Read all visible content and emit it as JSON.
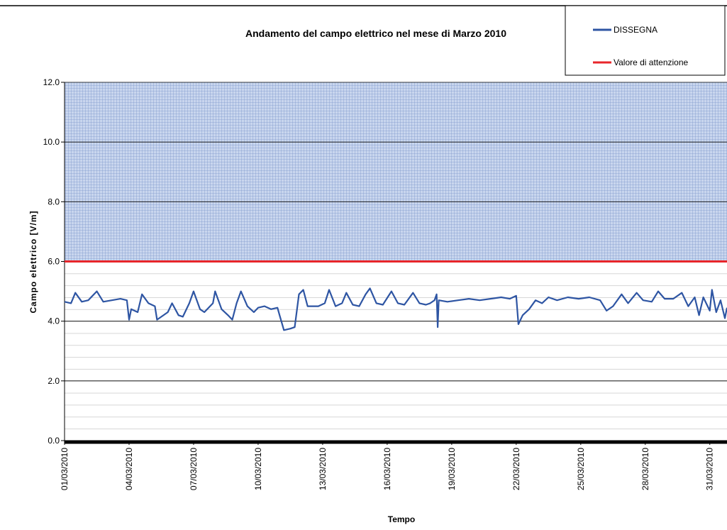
{
  "chart_data": {
    "type": "line",
    "title": "Andamento del campo elettrico nel mese di Marzo 2010",
    "x_label": "Tempo",
    "y_label": "Campo elettrico [V/m]",
    "xlim": [
      1,
      31.8
    ],
    "ylim": [
      0,
      12
    ],
    "xticks": [
      {
        "value": 1,
        "label": "01/03/2010"
      },
      {
        "value": 4,
        "label": "04/03/2010"
      },
      {
        "value": 7,
        "label": "07/03/2010"
      },
      {
        "value": 10,
        "label": "10/03/2010"
      },
      {
        "value": 13,
        "label": "13/03/2010"
      },
      {
        "value": 16,
        "label": "16/03/2010"
      },
      {
        "value": 19,
        "label": "19/03/2010"
      },
      {
        "value": 22,
        "label": "22/03/2010"
      },
      {
        "value": 25,
        "label": "25/03/2010"
      },
      {
        "value": 28,
        "label": "28/03/2010"
      },
      {
        "value": 31,
        "label": "31/03/2010"
      }
    ],
    "yticks": [
      {
        "value": 0,
        "label": "0.0"
      },
      {
        "value": 2,
        "label": "2.0"
      },
      {
        "value": 4,
        "label": "4.0"
      },
      {
        "value": 6,
        "label": "6.0"
      },
      {
        "value": 8,
        "label": "8.0"
      },
      {
        "value": 10,
        "label": "10.0"
      },
      {
        "value": 12,
        "label": "12.0"
      }
    ],
    "grid": true,
    "legend": "top-right",
    "series": [
      {
        "name": "DISSEGNA",
        "color": "#2e55a3",
        "x": [
          1.0,
          1.3,
          1.5,
          1.8,
          2.1,
          2.5,
          2.8,
          3.2,
          3.6,
          3.9,
          4.0,
          4.1,
          4.4,
          4.6,
          4.9,
          5.2,
          5.3,
          5.5,
          5.8,
          6.0,
          6.3,
          6.5,
          6.8,
          7.0,
          7.3,
          7.5,
          7.9,
          8.0,
          8.3,
          8.6,
          8.8,
          9.0,
          9.2,
          9.5,
          9.8,
          10.0,
          10.3,
          10.6,
          10.9,
          11.0,
          11.2,
          11.5,
          11.7,
          11.9,
          12.1,
          12.3,
          12.8,
          13.1,
          13.3,
          13.6,
          13.9,
          14.1,
          14.4,
          14.7,
          15.0,
          15.2,
          15.5,
          15.8,
          16.2,
          16.5,
          16.8,
          17.2,
          17.5,
          17.8,
          18.0,
          18.2,
          18.3,
          18.35,
          18.4,
          18.8,
          19.3,
          19.8,
          20.3,
          20.8,
          21.3,
          21.7,
          22.0,
          22.1,
          22.3,
          22.6,
          22.9,
          23.2,
          23.5,
          23.9,
          24.4,
          24.9,
          25.4,
          25.9,
          26.2,
          26.5,
          26.9,
          27.2,
          27.6,
          27.9,
          28.3,
          28.6,
          28.9,
          29.3,
          29.7,
          30.0,
          30.3,
          30.5,
          30.7,
          31.0,
          31.1,
          31.3,
          31.5,
          31.7,
          31.8
        ],
        "values": [
          4.65,
          4.6,
          4.95,
          4.65,
          4.7,
          5.0,
          4.65,
          4.7,
          4.75,
          4.7,
          4.05,
          4.4,
          4.3,
          4.9,
          4.6,
          4.5,
          4.05,
          4.15,
          4.3,
          4.6,
          4.2,
          4.15,
          4.6,
          5.0,
          4.4,
          4.3,
          4.6,
          5.0,
          4.4,
          4.2,
          4.05,
          4.6,
          5.0,
          4.5,
          4.3,
          4.45,
          4.5,
          4.4,
          4.45,
          4.2,
          3.7,
          3.75,
          3.8,
          4.9,
          5.05,
          4.5,
          4.5,
          4.6,
          5.05,
          4.5,
          4.6,
          4.95,
          4.55,
          4.5,
          4.9,
          5.1,
          4.6,
          4.55,
          5.0,
          4.6,
          4.55,
          4.95,
          4.6,
          4.55,
          4.6,
          4.7,
          4.9,
          3.8,
          4.7,
          4.65,
          4.7,
          4.75,
          4.7,
          4.75,
          4.8,
          4.75,
          4.85,
          3.9,
          4.2,
          4.4,
          4.7,
          4.6,
          4.8,
          4.7,
          4.8,
          4.75,
          4.8,
          4.7,
          4.35,
          4.5,
          4.9,
          4.6,
          4.95,
          4.7,
          4.65,
          5.0,
          4.75,
          4.75,
          4.95,
          4.5,
          4.8,
          4.2,
          4.8,
          4.35,
          5.05,
          4.3,
          4.7,
          4.1,
          4.45
        ]
      },
      {
        "name": "Valore di attenzione",
        "color": "#e8262b",
        "x": [
          1,
          31.8
        ],
        "values": [
          6,
          6
        ]
      }
    ]
  }
}
